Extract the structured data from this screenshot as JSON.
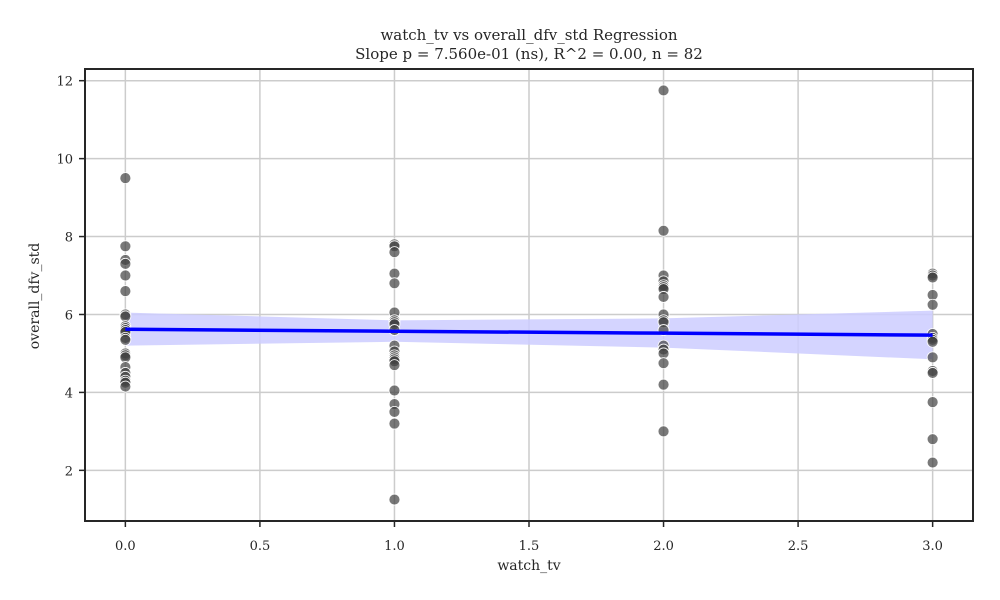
{
  "chart_data": {
    "type": "scatter",
    "title": "watch_tv vs overall_dfv_std Regression",
    "subtitle": "Slope p = 7.560e-01 (ns), R^2 = 0.00, n = 82",
    "xlabel": "watch_tv",
    "ylabel": "overall_dfv_std",
    "xlim": [
      -0.15,
      3.15
    ],
    "ylim": [
      0.7,
      12.3
    ],
    "xticks": [
      0.0,
      0.5,
      1.0,
      1.5,
      2.0,
      2.5,
      3.0
    ],
    "xtick_labels": [
      "0.0",
      "0.5",
      "1.0",
      "1.5",
      "2.0",
      "2.5",
      "3.0"
    ],
    "yticks": [
      2,
      4,
      6,
      8,
      10,
      12
    ],
    "ytick_labels": [
      "2",
      "4",
      "6",
      "8",
      "10",
      "12"
    ],
    "grid": true,
    "points": [
      {
        "x": 0,
        "y": 9.5
      },
      {
        "x": 0,
        "y": 7.75
      },
      {
        "x": 0,
        "y": 7.4
      },
      {
        "x": 0,
        "y": 7.3
      },
      {
        "x": 0,
        "y": 7.0
      },
      {
        "x": 0,
        "y": 6.6
      },
      {
        "x": 0,
        "y": 6.0
      },
      {
        "x": 0,
        "y": 5.95
      },
      {
        "x": 0,
        "y": 5.7
      },
      {
        "x": 0,
        "y": 5.65
      },
      {
        "x": 0,
        "y": 5.6
      },
      {
        "x": 0,
        "y": 5.55
      },
      {
        "x": 0,
        "y": 5.4
      },
      {
        "x": 0,
        "y": 5.35
      },
      {
        "x": 0,
        "y": 5.0
      },
      {
        "x": 0,
        "y": 4.95
      },
      {
        "x": 0,
        "y": 4.9
      },
      {
        "x": 0,
        "y": 4.65
      },
      {
        "x": 0,
        "y": 4.5
      },
      {
        "x": 0,
        "y": 4.4
      },
      {
        "x": 0,
        "y": 4.3
      },
      {
        "x": 0,
        "y": 4.25
      },
      {
        "x": 0,
        "y": 4.15
      },
      {
        "x": 1,
        "y": 7.8
      },
      {
        "x": 1,
        "y": 7.75
      },
      {
        "x": 1,
        "y": 7.6
      },
      {
        "x": 1,
        "y": 7.05
      },
      {
        "x": 1,
        "y": 6.8
      },
      {
        "x": 1,
        "y": 6.05
      },
      {
        "x": 1,
        "y": 5.85
      },
      {
        "x": 1,
        "y": 5.8
      },
      {
        "x": 1,
        "y": 5.75
      },
      {
        "x": 1,
        "y": 5.6
      },
      {
        "x": 1,
        "y": 5.2
      },
      {
        "x": 1,
        "y": 5.05
      },
      {
        "x": 1,
        "y": 4.95
      },
      {
        "x": 1,
        "y": 4.9
      },
      {
        "x": 1,
        "y": 4.85
      },
      {
        "x": 1,
        "y": 4.8
      },
      {
        "x": 1,
        "y": 4.7
      },
      {
        "x": 1,
        "y": 4.05
      },
      {
        "x": 1,
        "y": 3.7
      },
      {
        "x": 1,
        "y": 3.5
      },
      {
        "x": 1,
        "y": 3.2
      },
      {
        "x": 1,
        "y": 1.25
      },
      {
        "x": 2,
        "y": 11.75
      },
      {
        "x": 2,
        "y": 8.15
      },
      {
        "x": 2,
        "y": 7.0
      },
      {
        "x": 2,
        "y": 6.85
      },
      {
        "x": 2,
        "y": 6.75
      },
      {
        "x": 2,
        "y": 6.7
      },
      {
        "x": 2,
        "y": 6.65
      },
      {
        "x": 2,
        "y": 6.45
      },
      {
        "x": 2,
        "y": 6.0
      },
      {
        "x": 2,
        "y": 5.85
      },
      {
        "x": 2,
        "y": 5.8
      },
      {
        "x": 2,
        "y": 5.6
      },
      {
        "x": 2,
        "y": 5.2
      },
      {
        "x": 2,
        "y": 5.1
      },
      {
        "x": 2,
        "y": 5.0
      },
      {
        "x": 2,
        "y": 4.75
      },
      {
        "x": 2,
        "y": 4.2
      },
      {
        "x": 2,
        "y": 3.0
      },
      {
        "x": 3,
        "y": 7.05
      },
      {
        "x": 3,
        "y": 7.0
      },
      {
        "x": 3,
        "y": 6.95
      },
      {
        "x": 3,
        "y": 6.5
      },
      {
        "x": 3,
        "y": 6.25
      },
      {
        "x": 3,
        "y": 5.5
      },
      {
        "x": 3,
        "y": 5.4
      },
      {
        "x": 3,
        "y": 5.35
      },
      {
        "x": 3,
        "y": 5.3
      },
      {
        "x": 3,
        "y": 4.9
      },
      {
        "x": 3,
        "y": 4.55
      },
      {
        "x": 3,
        "y": 4.5
      },
      {
        "x": 3,
        "y": 3.75
      },
      {
        "x": 3,
        "y": 2.8
      },
      {
        "x": 3,
        "y": 2.2
      }
    ],
    "regression": {
      "x": [
        0,
        1,
        2,
        3
      ],
      "fit": [
        5.62,
        5.57,
        5.52,
        5.47
      ],
      "ci_low": [
        5.2,
        5.3,
        5.15,
        4.85
      ],
      "ci_high": [
        6.05,
        5.85,
        5.9,
        6.1
      ]
    },
    "colors": {
      "points": "#404040",
      "point_edge": "#ffffff",
      "fit_line": "#0000ff",
      "ci_band": "#ccccff",
      "grid": "#cccccc",
      "axes": "#262626"
    }
  }
}
